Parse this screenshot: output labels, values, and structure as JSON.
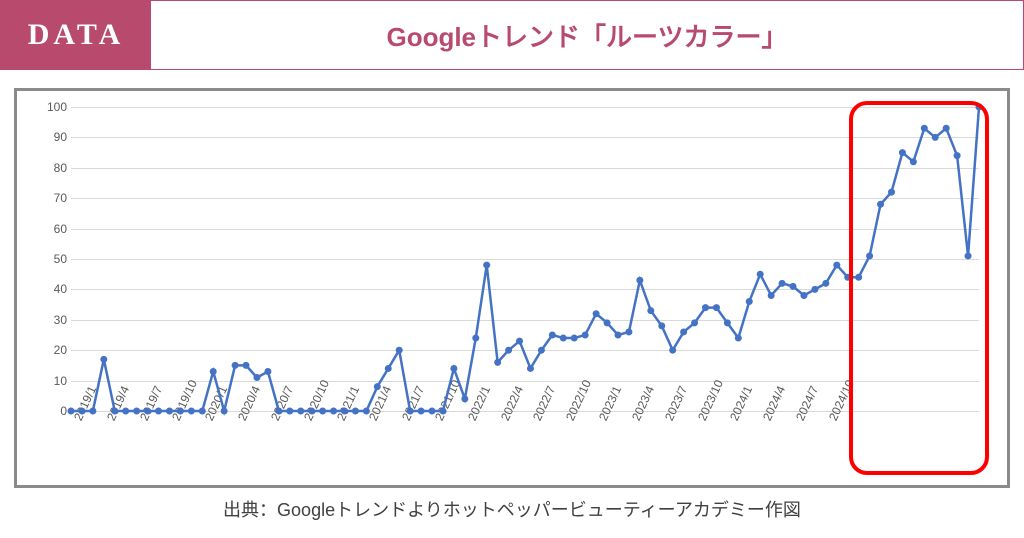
{
  "header": {
    "badge": "DATA",
    "title": "Googleトレンド「ルーツカラー」"
  },
  "chart": {
    "type": "line",
    "line_color": "#4472c4",
    "marker_color": "#4472c4",
    "marker_radius": 3.5,
    "line_width": 2.5,
    "grid_color": "#d9d9d9",
    "text_color": "#595959",
    "ylim": [
      0,
      100
    ],
    "ytick_step": 10,
    "yticks": [
      0,
      10,
      20,
      30,
      40,
      50,
      60,
      70,
      80,
      90,
      100
    ],
    "x_labels": [
      "2019/1",
      "2019/4",
      "2019/7",
      "2019/10",
      "2020/1",
      "2020/4",
      "2020/7",
      "2020/10",
      "2021/1",
      "2021/4",
      "2021/7",
      "2021/10",
      "2022/1",
      "2022/4",
      "2022/7",
      "2022/10",
      "2023/1",
      "2023/4",
      "2023/7",
      "2023/10",
      "2024/1",
      "2024/4",
      "2024/7",
      "2024/10"
    ],
    "x_label_step": 3,
    "values": [
      0,
      0,
      0,
      17,
      0,
      0,
      0,
      0,
      0,
      0,
      0,
      0,
      0,
      13,
      0,
      15,
      15,
      11,
      13,
      0,
      0,
      0,
      0,
      0,
      0,
      0,
      0,
      0,
      8,
      14,
      20,
      0,
      0,
      0,
      0,
      14,
      4,
      24,
      48,
      16,
      20,
      23,
      14,
      20,
      25,
      24,
      24,
      25,
      32,
      29,
      25,
      26,
      43,
      33,
      28,
      20,
      26,
      29,
      34,
      34,
      29,
      24,
      36,
      45,
      38,
      42,
      41,
      38,
      40,
      42,
      48,
      44,
      44,
      51,
      68,
      72,
      85,
      82,
      93,
      90,
      93,
      84,
      51,
      100
    ],
    "highlight": {
      "start_index": 72,
      "end_index": 83
    },
    "highlight_color": "#ff0000",
    "tick_fontsize": 12
  },
  "citation": "出典：Googleトレンドよりホットペッパービューティーアカデミー作図"
}
